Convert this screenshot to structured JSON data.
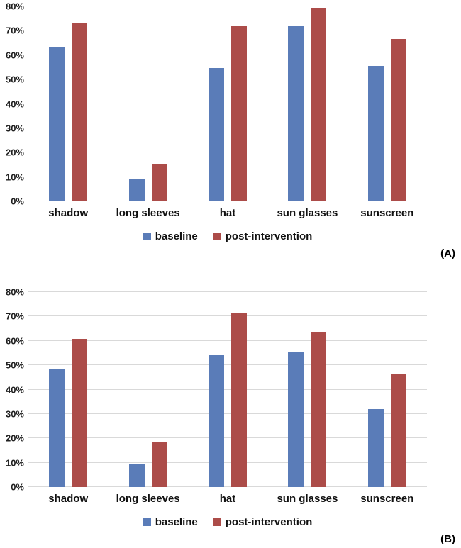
{
  "panels": [
    {
      "label": "(A)"
    },
    {
      "label": "(B)"
    }
  ],
  "colors": {
    "baseline": "#5a7cb8",
    "post_intervention": "#ac4c49",
    "gridline": "#d9d9d9",
    "text": "#1a1a1a"
  },
  "chart_data": [
    {
      "type": "bar",
      "title": "",
      "xlabel": "",
      "ylabel": "",
      "panel": "(A)",
      "categories": [
        "shadow",
        "long sleeves",
        "hat",
        "sun glasses",
        "sunscreen"
      ],
      "series": [
        {
          "name": "baseline",
          "color": "#5a7cb8",
          "values": [
            63,
            9,
            54.5,
            71.5,
            55.5
          ]
        },
        {
          "name": "post-intervention",
          "color": "#ac4c49",
          "values": [
            73,
            15,
            71.5,
            79,
            66.5
          ]
        }
      ],
      "ylim": [
        0,
        80
      ],
      "grid": true,
      "legend_position": "bottom",
      "yticks": [
        {
          "value": 0,
          "label": "0%"
        },
        {
          "value": 10,
          "label": "10%"
        },
        {
          "value": 20,
          "label": "20%"
        },
        {
          "value": 30,
          "label": "30%"
        },
        {
          "value": 40,
          "label": "40%"
        },
        {
          "value": 50,
          "label": "50%"
        },
        {
          "value": 60,
          "label": "60%"
        },
        {
          "value": 70,
          "label": "70%"
        },
        {
          "value": 80,
          "label": "80%"
        }
      ]
    },
    {
      "type": "bar",
      "title": "",
      "xlabel": "",
      "ylabel": "",
      "panel": "(B)",
      "categories": [
        "shadow",
        "long sleeves",
        "hat",
        "sun glasses",
        "sunscreen"
      ],
      "series": [
        {
          "name": "baseline",
          "color": "#5a7cb8",
          "values": [
            48,
            9.5,
            54,
            55.5,
            32
          ]
        },
        {
          "name": "post-intervention",
          "color": "#ac4c49",
          "values": [
            60.5,
            18.5,
            71,
            63.5,
            46
          ]
        }
      ],
      "ylim": [
        0,
        80
      ],
      "grid": true,
      "legend_position": "bottom",
      "yticks": [
        {
          "value": 0,
          "label": "0%"
        },
        {
          "value": 10,
          "label": "10%"
        },
        {
          "value": 20,
          "label": "20%"
        },
        {
          "value": 30,
          "label": "30%"
        },
        {
          "value": 40,
          "label": "40%"
        },
        {
          "value": 50,
          "label": "50%"
        },
        {
          "value": 60,
          "label": "60%"
        },
        {
          "value": 70,
          "label": "70%"
        },
        {
          "value": 80,
          "label": "80%"
        }
      ]
    }
  ]
}
